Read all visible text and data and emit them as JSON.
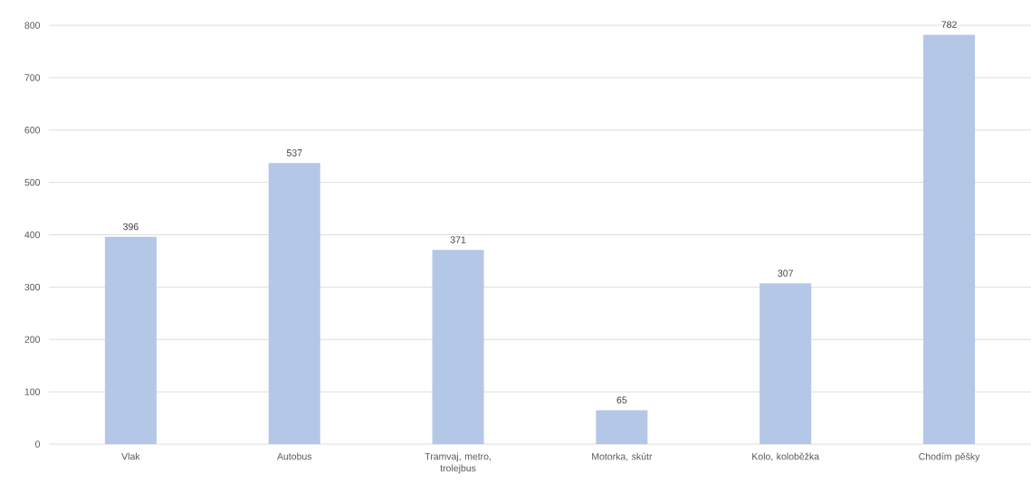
{
  "chart_data": {
    "type": "bar",
    "categories": [
      "Vlak",
      "Autobus",
      "Tramvaj, metro, trolejbus",
      "Motorka, skútr",
      "Kolo, koloběžka",
      "Chodím pěšky"
    ],
    "values": [
      396,
      537,
      371,
      65,
      307,
      782
    ],
    "color": "#b4c7e7",
    "ylim": [
      0,
      800
    ],
    "yticks": [
      0,
      100,
      200,
      300,
      400,
      500,
      600,
      700,
      800
    ],
    "grid": "y",
    "data_labels": true
  }
}
